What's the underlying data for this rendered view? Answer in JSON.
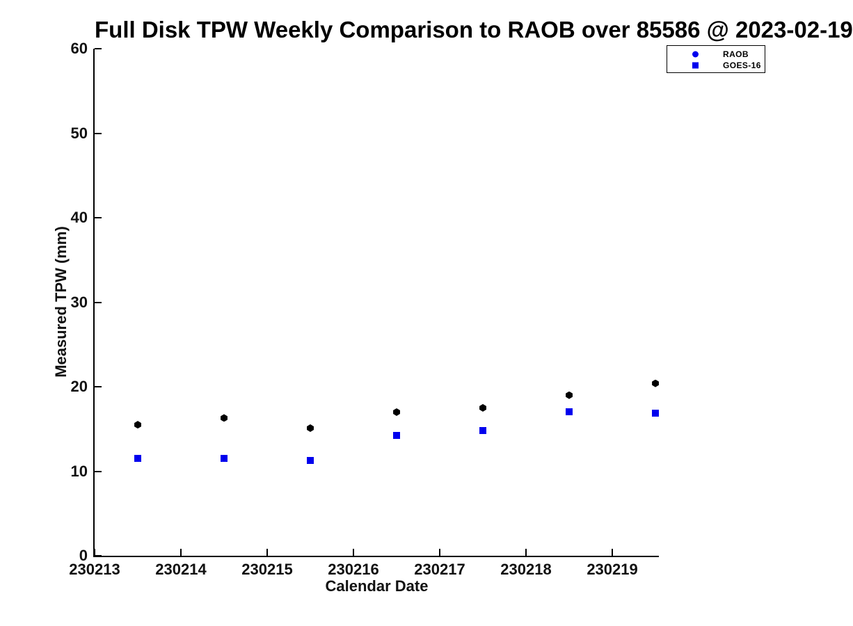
{
  "chart_data": {
    "type": "scatter",
    "title": "Full Disk TPW Weekly Comparison to RAOB over 85586 @ 2023-02-19",
    "xlabel": "Calendar Date",
    "ylabel": "Measured TPW (mm)",
    "xlim": [
      230213,
      230219.54
    ],
    "ylim": [
      0,
      60
    ],
    "xticks": [
      230213,
      230214,
      230215,
      230216,
      230217,
      230218,
      230219
    ],
    "yticks": [
      0,
      10,
      20,
      30,
      40,
      50,
      60
    ],
    "grid": false,
    "x": [
      230213.5,
      230214.5,
      230215.5,
      230216.5,
      230217.5,
      230218.5,
      230219.5
    ],
    "series": [
      {
        "name": "RAOB",
        "marker": "hexagon",
        "color": "#000000",
        "marker_size": 11,
        "values": [
          15.5,
          16.3,
          15.1,
          17.0,
          17.5,
          19.0,
          20.4
        ]
      },
      {
        "name": "GOES-16",
        "marker": "square",
        "color": "#0000ee",
        "marker_size": 10,
        "values": [
          11.5,
          11.5,
          11.3,
          14.2,
          14.8,
          17.0,
          16.9
        ]
      }
    ],
    "legend": {
      "position": "top-right",
      "entries": [
        {
          "label": "RAOB",
          "marker": "circle",
          "color": "#0000ee"
        },
        {
          "label": "GOES-16",
          "marker": "square",
          "color": "#0000ee"
        }
      ]
    }
  },
  "colors": {
    "axis": "#000000",
    "background": "#ffffff"
  }
}
